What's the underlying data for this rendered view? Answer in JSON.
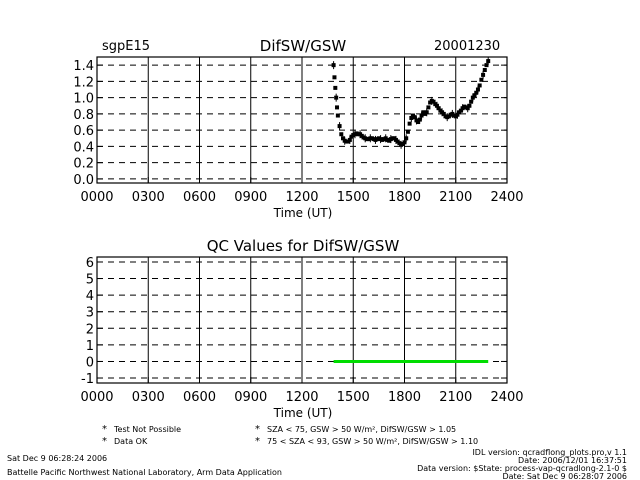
{
  "header": {
    "site": "sgpE15",
    "date": "20001230"
  },
  "chart_data": [
    {
      "type": "scatter",
      "title": "DifSW/GSW",
      "xlabel": "Time (UT)",
      "ylabel": "",
      "xlim": [
        0,
        2400
      ],
      "ylim": [
        -0.05,
        1.5
      ],
      "x_tick_labels": [
        "0000",
        "0300",
        "0600",
        "0900",
        "1200",
        "1500",
        "1800",
        "2100",
        "2400"
      ],
      "y_tick_labels": [
        "0.0",
        "0.2",
        "0.4",
        "0.6",
        "0.8",
        "1.0",
        "1.2",
        "1.4"
      ],
      "grid": "dashed-horizontal-and-solid-vertical",
      "series": [
        {
          "color": "#000000",
          "points": [
            [
              1385,
              1.4
            ],
            [
              1390,
              1.25
            ],
            [
              1395,
              1.12
            ],
            [
              1400,
              1.0
            ],
            [
              1405,
              0.88
            ],
            [
              1410,
              0.78
            ],
            [
              1420,
              0.65
            ],
            [
              1430,
              0.55
            ],
            [
              1440,
              0.5
            ],
            [
              1450,
              0.47
            ],
            [
              1460,
              0.46
            ],
            [
              1470,
              0.46
            ],
            [
              1480,
              0.48
            ],
            [
              1490,
              0.52
            ],
            [
              1500,
              0.54
            ],
            [
              1510,
              0.55
            ],
            [
              1520,
              0.56
            ],
            [
              1530,
              0.55
            ],
            [
              1540,
              0.55
            ],
            [
              1550,
              0.53
            ],
            [
              1560,
              0.51
            ],
            [
              1570,
              0.5
            ],
            [
              1580,
              0.49
            ],
            [
              1590,
              0.49
            ],
            [
              1600,
              0.5
            ],
            [
              1610,
              0.5
            ],
            [
              1620,
              0.49
            ],
            [
              1630,
              0.48
            ],
            [
              1640,
              0.49
            ],
            [
              1650,
              0.5
            ],
            [
              1660,
              0.49
            ],
            [
              1670,
              0.48
            ],
            [
              1680,
              0.49
            ],
            [
              1690,
              0.5
            ],
            [
              1700,
              0.48
            ],
            [
              1710,
              0.47
            ],
            [
              1720,
              0.49
            ],
            [
              1730,
              0.5
            ],
            [
              1740,
              0.5
            ],
            [
              1750,
              0.48
            ],
            [
              1760,
              0.46
            ],
            [
              1770,
              0.44
            ],
            [
              1780,
              0.42
            ],
            [
              1790,
              0.43
            ],
            [
              1800,
              0.45
            ],
            [
              1810,
              0.5
            ],
            [
              1820,
              0.58
            ],
            [
              1830,
              0.68
            ],
            [
              1840,
              0.75
            ],
            [
              1850,
              0.78
            ],
            [
              1860,
              0.76
            ],
            [
              1870,
              0.72
            ],
            [
              1880,
              0.7
            ],
            [
              1890,
              0.73
            ],
            [
              1900,
              0.78
            ],
            [
              1910,
              0.82
            ],
            [
              1920,
              0.8
            ],
            [
              1930,
              0.82
            ],
            [
              1940,
              0.88
            ],
            [
              1950,
              0.94
            ],
            [
              1960,
              0.96
            ],
            [
              1970,
              0.95
            ],
            [
              1980,
              0.92
            ],
            [
              1990,
              0.9
            ],
            [
              2000,
              0.87
            ],
            [
              2010,
              0.84
            ],
            [
              2020,
              0.82
            ],
            [
              2030,
              0.8
            ],
            [
              2040,
              0.77
            ],
            [
              2050,
              0.76
            ],
            [
              2060,
              0.77
            ],
            [
              2070,
              0.79
            ],
            [
              2080,
              0.8
            ],
            [
              2090,
              0.78
            ],
            [
              2100,
              0.77
            ],
            [
              2110,
              0.79
            ],
            [
              2120,
              0.82
            ],
            [
              2130,
              0.84
            ],
            [
              2140,
              0.87
            ],
            [
              2150,
              0.89
            ],
            [
              2160,
              0.88
            ],
            [
              2170,
              0.87
            ],
            [
              2180,
              0.9
            ],
            [
              2190,
              0.95
            ],
            [
              2200,
              1.0
            ],
            [
              2210,
              1.03
            ],
            [
              2220,
              1.06
            ],
            [
              2230,
              1.1
            ],
            [
              2240,
              1.15
            ],
            [
              2250,
              1.22
            ],
            [
              2260,
              1.28
            ],
            [
              2270,
              1.34
            ],
            [
              2280,
              1.4
            ],
            [
              2290,
              1.45
            ]
          ]
        }
      ]
    },
    {
      "type": "scatter",
      "title": "QC Values for DifSW/GSW",
      "xlabel": "Time (UT)",
      "ylabel": "",
      "xlim": [
        0,
        2400
      ],
      "ylim": [
        -1.3,
        6.3
      ],
      "x_tick_labels": [
        "0000",
        "0300",
        "0600",
        "0900",
        "1200",
        "1500",
        "1800",
        "2100",
        "2400"
      ],
      "y_tick_labels": [
        "-1",
        "0",
        "1",
        "2",
        "3",
        "4",
        "5",
        "6"
      ],
      "grid": "dashed-horizontal-and-solid-vertical",
      "series": [
        {
          "color": "#00dd00",
          "x_range": [
            1385,
            2290
          ],
          "y": 0
        }
      ],
      "legend": [
        {
          "symbol": "*",
          "color": "#000000",
          "label": "Test Not Possible"
        },
        {
          "symbol": "*",
          "color": "#00cc00",
          "label": "Data OK"
        },
        {
          "symbol": "*",
          "color": "#ffaa00",
          "label": "SZA < 75, GSW > 50 W/m², DifSW/GSW > 1.05"
        },
        {
          "symbol": "*",
          "color": "#ff0000",
          "label": "75 < SZA < 93, GSW > 50 W/m², DifSW/GSW > 1.10"
        }
      ]
    }
  ],
  "footer": {
    "left_date": "Sat Dec  9 06:28:24 2006",
    "left_lab": "Battelle Pacific Northwest National Laboratory, Arm Data Application",
    "right_lines": [
      "IDL version: qcradflong_plots.pro,v 1.1",
      "Date: 2006/12/01 16:37:51",
      "Data version: $State: process-vap-qcradlong-2.1-0 $",
      "Date: Sat Dec  9 06:28:07 2006"
    ]
  }
}
